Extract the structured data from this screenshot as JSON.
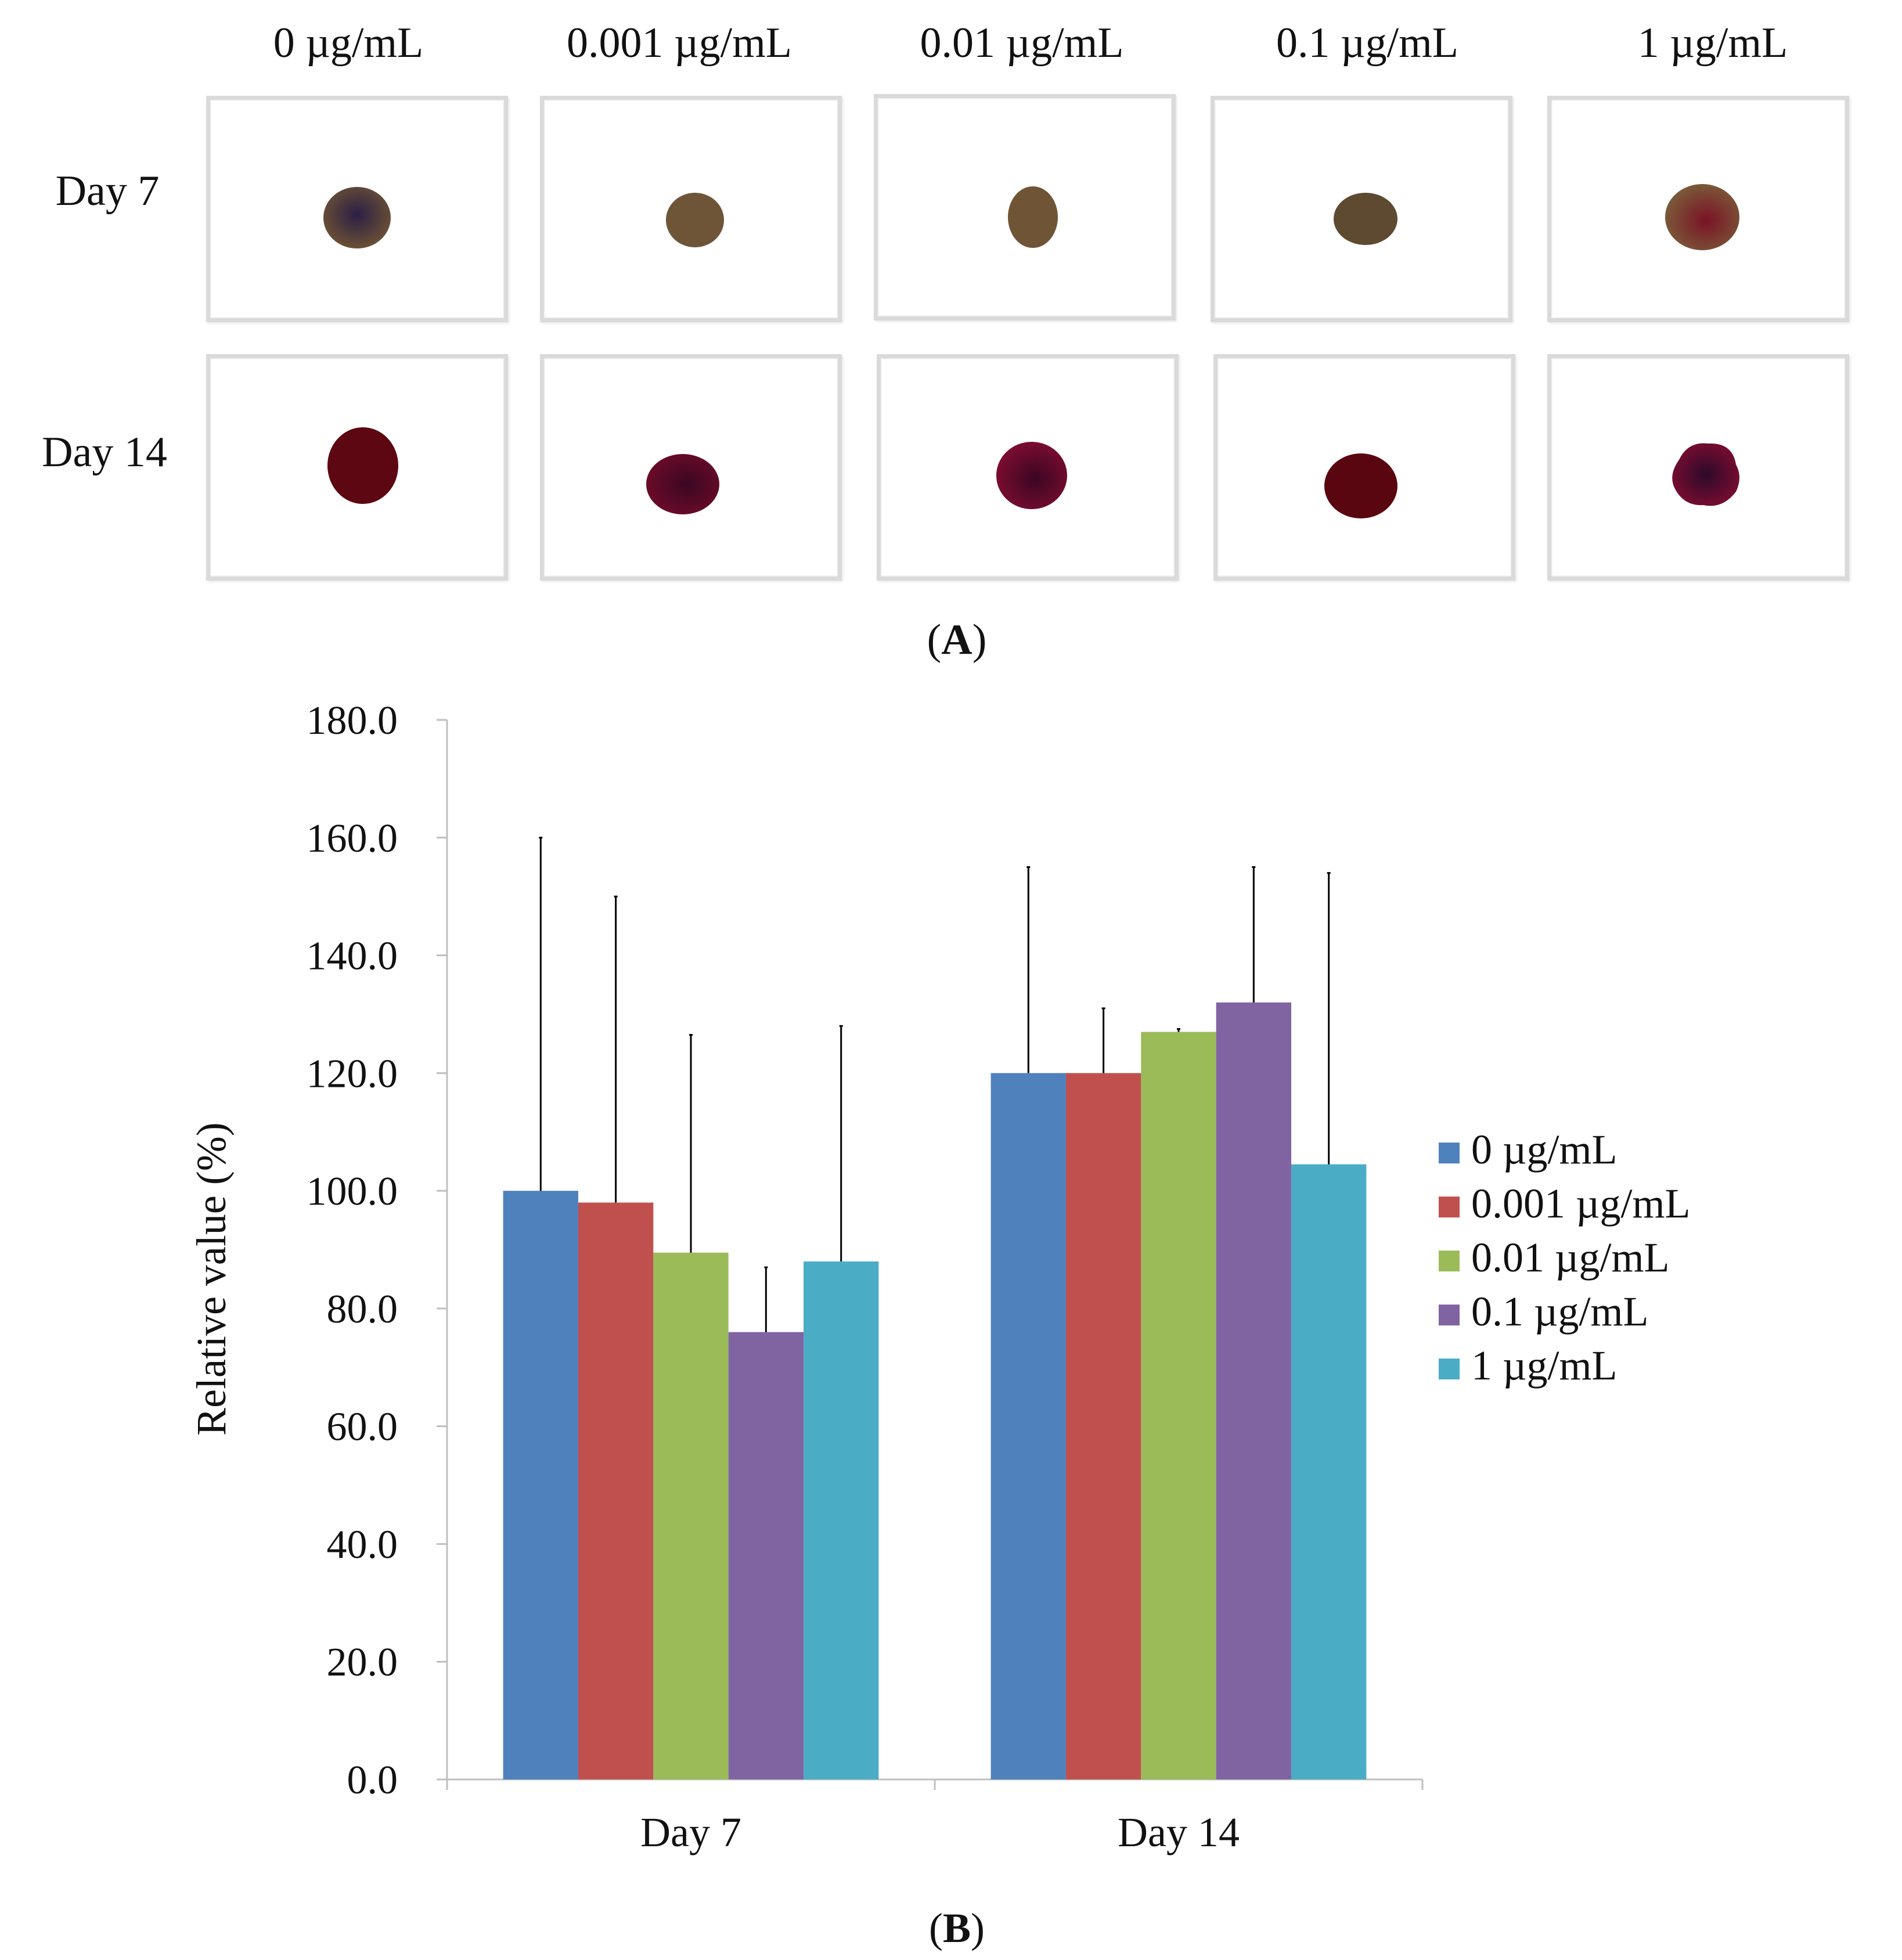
{
  "panel_a": {
    "column_labels": [
      "0 µg/mL",
      "0.001 µg/mL",
      "0.01 µg/mL",
      "0.1 µg/mL",
      "1 µg/mL"
    ],
    "row_labels": [
      "Day 7",
      "Day 14"
    ],
    "label": "A"
  },
  "chart_data": {
    "type": "bar",
    "title": "",
    "xlabel": "",
    "ylabel": "Relative value (%)",
    "ylim": [
      0,
      180
    ],
    "yticks": [
      "0.0",
      "20.0",
      "40.0",
      "60.0",
      "80.0",
      "100.0",
      "120.0",
      "140.0",
      "160.0",
      "180.0"
    ],
    "categories": [
      "Day 7",
      "Day 14"
    ],
    "series": [
      {
        "name": "0 µg/mL",
        "color": "#4f81bd",
        "values": [
          100.0,
          120.0
        ],
        "error": [
          60.0,
          35.0
        ]
      },
      {
        "name": "0.001 µg/mL",
        "color": "#c0504d",
        "values": [
          98.0,
          120.0
        ],
        "error": [
          52.0,
          11.0
        ]
      },
      {
        "name": "0.01 µg/mL",
        "color": "#9bbb59",
        "values": [
          89.5,
          127.0
        ],
        "error": [
          37.0,
          0.5
        ]
      },
      {
        "name": "0.1 µg/mL",
        "color": "#8064a2",
        "values": [
          76.0,
          132.0
        ],
        "error": [
          11.0,
          23.0
        ]
      },
      {
        "name": "1 µg/mL",
        "color": "#4bacc6",
        "values": [
          88.0,
          104.5
        ],
        "error": [
          40.0,
          49.5
        ]
      }
    ],
    "legend_position": "right",
    "grid": false,
    "label": "B"
  }
}
